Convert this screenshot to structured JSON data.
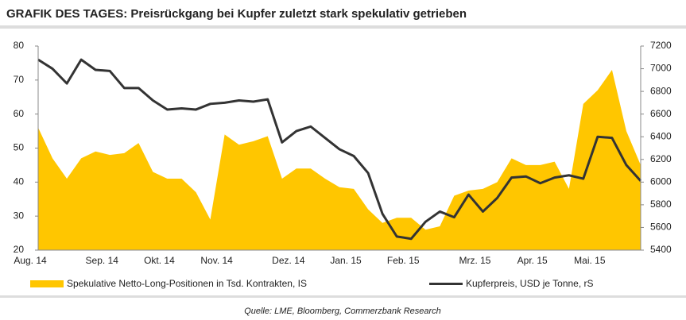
{
  "chart_data": {
    "type": "area_line",
    "title": "GRAFIK DES TAGES: Preisrückgang bei Kupfer zuletzt stark spekulativ getrieben",
    "source": "Quelle: LME, Bloomberg, Commerzbank Research",
    "categories": [
      "Aug. 14",
      null,
      null,
      null,
      null,
      "Sep. 14",
      null,
      null,
      null,
      "Okt. 14",
      null,
      null,
      null,
      "Nov. 14",
      null,
      null,
      null,
      null,
      "Dez. 14",
      null,
      null,
      null,
      "Jan. 15",
      null,
      null,
      null,
      "Feb. 15",
      null,
      null,
      null,
      null,
      "Mrz. 15",
      null,
      null,
      null,
      "Apr. 15",
      null,
      null,
      null,
      "Mai. 15",
      null,
      null,
      null
    ],
    "series": [
      {
        "name": "Spekulative Netto-Long-Positionen in Tsd. Kontrakten, IS",
        "color": "#ffc600",
        "kind": "area",
        "values": [
          56,
          47,
          41,
          47,
          49,
          48,
          48.5,
          51.5,
          43,
          41,
          41,
          37,
          29,
          54,
          51,
          52,
          53.5,
          41,
          44,
          44,
          41,
          38.5,
          38,
          32,
          28,
          29.5,
          29.5,
          26,
          27,
          36,
          37.5,
          38,
          40,
          47,
          45,
          45,
          46,
          38,
          63,
          67,
          73,
          55,
          45
        ]
      },
      {
        "name": "Kupferpreis, USD je Tonne, rS",
        "color": "#333333",
        "kind": "line",
        "axis": "y2",
        "values": [
          7080,
          7000,
          6870,
          7080,
          6990,
          6980,
          6830,
          6830,
          6720,
          6640,
          6650,
          6640,
          6690,
          6700,
          6720,
          6710,
          6730,
          6350,
          6450,
          6490,
          6390,
          6290,
          6230,
          6080,
          5720,
          5520,
          5500,
          5650,
          5740,
          5690,
          5890,
          5740,
          5860,
          6040,
          6050,
          5990,
          6040,
          6060,
          6030,
          6400,
          6390,
          6150,
          6010
        ]
      }
    ],
    "ylim": [
      20,
      80
    ],
    "yticks": [
      20,
      30,
      40,
      50,
      60,
      70,
      80
    ],
    "y2lim": [
      5400,
      7200
    ],
    "y2ticks": [
      5400,
      5600,
      5800,
      6000,
      6200,
      6400,
      6600,
      6800,
      7000,
      7200
    ]
  }
}
